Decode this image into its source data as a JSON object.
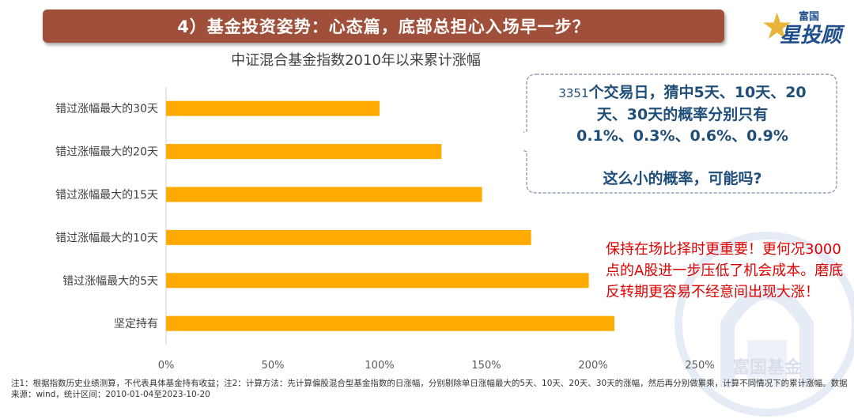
{
  "header": {
    "title": "4）基金投资姿势：心态篇，底部总担心入场早一步？",
    "logo_top": "富国",
    "logo_main": "星投顾"
  },
  "chart_data": {
    "type": "bar",
    "orientation": "horizontal",
    "title": "中证混合基金指数2010年以来累计涨幅",
    "categories": [
      "错过涨幅最大的30天",
      "错过涨幅最大的20天",
      "错过涨幅最大的15天",
      "错过涨幅最大的10天",
      "错过涨幅最大的5天",
      "坚定持有"
    ],
    "values": [
      100,
      129,
      148,
      171,
      198,
      210
    ],
    "xlim": [
      0,
      250
    ],
    "xticks": [
      "0%",
      "50%",
      "100%",
      "150%",
      "200%",
      "250%"
    ],
    "bar_color": "#FFAA00"
  },
  "bubble": {
    "num": "3351",
    "line1": "个交易日，猜中5天、10天、20",
    "line2": "天、30天的概率分别只有",
    "line3": "0.1%、0.3%、0.6%、0.9%",
    "line4": "这么小的概率，可能吗?"
  },
  "red_note": "保持在场比择时更重要！更何况3000点的A股进一步压低了机会成本。磨底反转期更容易不经意间出现大涨！",
  "watermark": "富国基金",
  "footnote": "注1：根据指数历史业绩测算，不代表具体基金持有收益；注2：计算方法：先计算偏股混合型基金指数的日涨幅，分别剔除单日涨幅最大的5天、10天、20天、30天的涨幅，然后再分别做累乘，计算不同情况下的累计涨幅。数据来源：wind，统计区间：2010-01-04至2023-10-20"
}
